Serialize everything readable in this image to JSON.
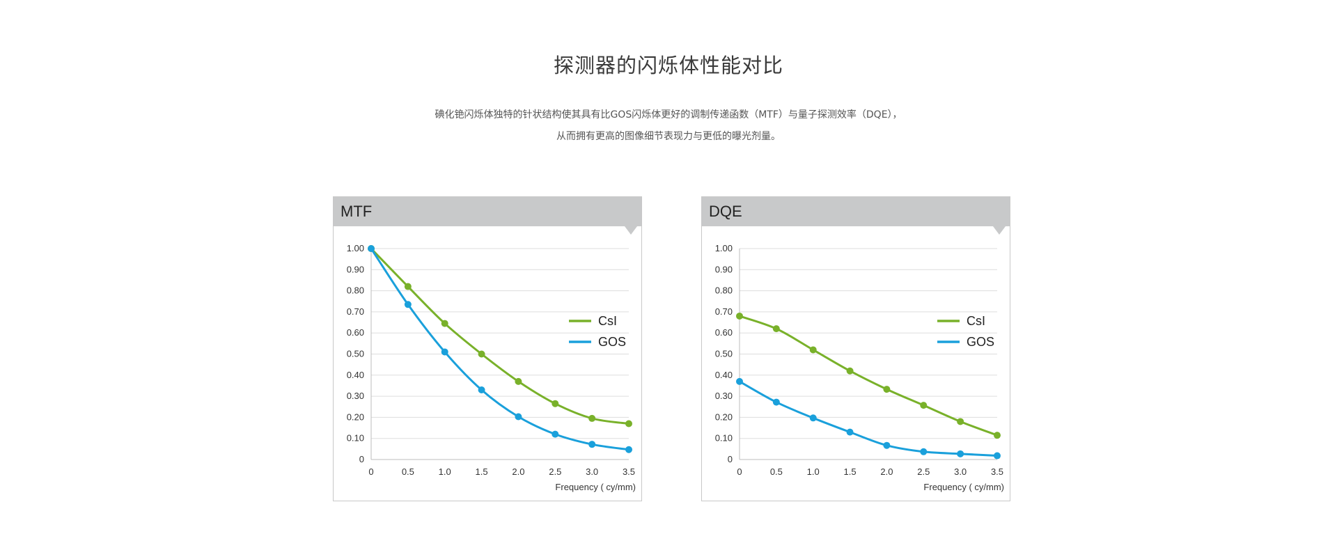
{
  "title": "探测器的闪烁体性能对比",
  "description": [
    "碘化铯闪烁体独特的针状结构使其具有比GOS闪烁体更好的调制传递函数（MTF）与量子探测效率（DQE），",
    "从而拥有更高的图像细节表现力与更低的曝光剂量。"
  ],
  "colors": {
    "CsI": "#79b12a",
    "GOS": "#1aa0db",
    "grid": "#dddddd",
    "header": "#c8c9ca"
  },
  "chart_data": [
    {
      "type": "line",
      "title": "MTF",
      "xlabel": "Frequency ( cy/mm)",
      "ylabel": "",
      "x": [
        0,
        0.5,
        1.0,
        1.5,
        2.0,
        2.5,
        3.0,
        3.5
      ],
      "x_tick_labels": [
        "0",
        "0.5",
        "1.0",
        "1.5",
        "2.0",
        "2.5",
        "3.0",
        "3.5"
      ],
      "y_tick_labels": [
        "0",
        "0.10",
        "0.20",
        "0.30",
        "0.40",
        "0.50",
        "0.60",
        "0.70",
        "0.80",
        "0.90",
        "1.00"
      ],
      "xlim": [
        0,
        3.5
      ],
      "ylim": [
        0,
        1.0
      ],
      "grid": true,
      "legend_position": "right",
      "series": [
        {
          "name": "CsI",
          "legend_label": "CsI",
          "color": "#79b12a",
          "values": [
            1.0,
            0.82,
            0.645,
            0.5,
            0.37,
            0.265,
            0.195,
            0.17
          ]
        },
        {
          "name": "GOS",
          "legend_label": "GOS",
          "color": "#1aa0db",
          "values": [
            1.0,
            0.735,
            0.51,
            0.33,
            0.203,
            0.12,
            0.072,
            0.047
          ]
        }
      ]
    },
    {
      "type": "line",
      "title": "DQE",
      "xlabel": "Frequency ( cy/mm)",
      "ylabel": "",
      "x": [
        0,
        0.5,
        1.0,
        1.5,
        2.0,
        2.5,
        3.0,
        3.5
      ],
      "x_tick_labels": [
        "0",
        "0.5",
        "1.0",
        "1.5",
        "2.0",
        "2.5",
        "3.0",
        "3.5"
      ],
      "y_tick_labels": [
        "0",
        "0.10",
        "0.20",
        "0.30",
        "0.40",
        "0.50",
        "0.60",
        "0.70",
        "0.80",
        "0.90",
        "1.00"
      ],
      "xlim": [
        0,
        3.5
      ],
      "ylim": [
        0,
        1.0
      ],
      "grid": true,
      "legend_position": "right",
      "series": [
        {
          "name": "CsI",
          "legend_label": "CsI",
          "color": "#79b12a",
          "values": [
            0.68,
            0.62,
            0.52,
            0.42,
            0.333,
            0.257,
            0.18,
            0.115
          ]
        },
        {
          "name": "GOS",
          "legend_label": "GOS",
          "color": "#1aa0db",
          "values": [
            0.37,
            0.272,
            0.197,
            0.13,
            0.067,
            0.037,
            0.027,
            0.018
          ]
        }
      ]
    }
  ]
}
